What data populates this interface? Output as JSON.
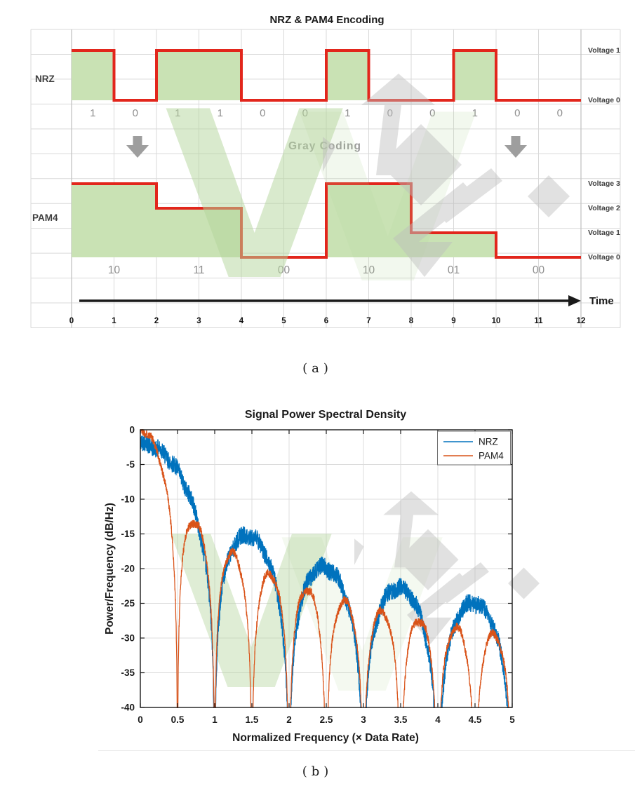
{
  "page": {
    "background": "#ffffff"
  },
  "captions": {
    "a": "(a)",
    "b": "(b)"
  },
  "watermark": {
    "v_color": "#b5d69c",
    "logo_color": "#bdbdbd"
  },
  "chart_data": [
    {
      "figure": "a",
      "type": "step-waveform",
      "title": "NRZ & PAM4 Encoding",
      "gray_coding_label": "Gray  Coding",
      "time_label": "Time",
      "time_ticks": [
        0,
        1,
        2,
        3,
        4,
        5,
        6,
        7,
        8,
        9,
        10,
        11,
        12
      ],
      "xlim": [
        0,
        12
      ],
      "grid": true,
      "nrz": {
        "label": "NRZ",
        "bits": [
          1,
          0,
          1,
          1,
          0,
          0,
          1,
          0,
          0,
          1,
          0,
          0
        ],
        "bit_duration": 1,
        "voltage_labels": [
          "Voltage 1",
          "Voltage 0"
        ]
      },
      "pam4": {
        "label": "PAM4",
        "symbols": [
          "10",
          "11",
          "00",
          "10",
          "01",
          "00"
        ],
        "symbol_duration": 2,
        "levels": [
          3,
          2,
          0,
          3,
          1,
          0
        ],
        "voltage_labels": [
          "Voltage 3",
          "Voltage 2",
          "Voltage 1",
          "Voltage 0"
        ]
      },
      "colors": {
        "signal_line": "#e2261c",
        "signal_fill": "#c9e2b4",
        "grid": "#d9d9d9",
        "label_gray": "#8f8f8f",
        "arrow_gray": "#9e9e9e",
        "time_axis": "#1a1a1a"
      }
    },
    {
      "figure": "b",
      "type": "line",
      "title": "Signal Power Spectral Density",
      "xlabel": "Normalized Frequency (× Data Rate)",
      "ylabel": "Power/Frequency (dB/Hz)",
      "xlim": [
        0,
        5
      ],
      "ylim": [
        -40,
        0
      ],
      "xticks": [
        0,
        0.5,
        1,
        1.5,
        2,
        2.5,
        3,
        3.5,
        4,
        4.5,
        5
      ],
      "yticks": [
        0,
        -5,
        -10,
        -15,
        -20,
        -25,
        -30,
        -35,
        -40
      ],
      "grid": true,
      "legend_position": "northeast",
      "colors": {
        "axis": "#1a1a1a",
        "grid": "#dcdcdc",
        "legend_border": "#707070"
      },
      "series": [
        {
          "name": "NRZ",
          "color": "#0072BD",
          "model": "sinc2_periodogram",
          "symbol_period": 1,
          "peak_dB": -2,
          "noise_band_dB": 1.3,
          "null_frequencies": [
            1,
            2,
            3,
            4,
            5
          ],
          "lobe_peaks": [
            {
              "x": 0,
              "y": -2
            },
            {
              "x": 1.45,
              "y": -15
            },
            {
              "x": 2.45,
              "y": -19.5
            },
            {
              "x": 3.5,
              "y": -22.5
            },
            {
              "x": 4.5,
              "y": -25
            }
          ]
        },
        {
          "name": "PAM4",
          "color": "#D95319",
          "model": "sinc2_periodogram",
          "symbol_period": 2,
          "peak_dB": 0,
          "noise_band_dB": 0.6,
          "null_frequencies": [
            0.5,
            1,
            1.5,
            2,
            2.5,
            3,
            3.5,
            4,
            4.5,
            5
          ],
          "lobe_peaks": [
            {
              "x": 0.72,
              "y": -12
            },
            {
              "x": 1.22,
              "y": -16.5
            },
            {
              "x": 1.72,
              "y": -19.5
            },
            {
              "x": 2.22,
              "y": -22.5
            },
            {
              "x": 2.72,
              "y": -24.5
            },
            {
              "x": 3.22,
              "y": -25.5
            },
            {
              "x": 3.72,
              "y": -27
            },
            {
              "x": 4.22,
              "y": -27.5
            },
            {
              "x": 4.72,
              "y": -28.5
            }
          ]
        }
      ]
    }
  ]
}
